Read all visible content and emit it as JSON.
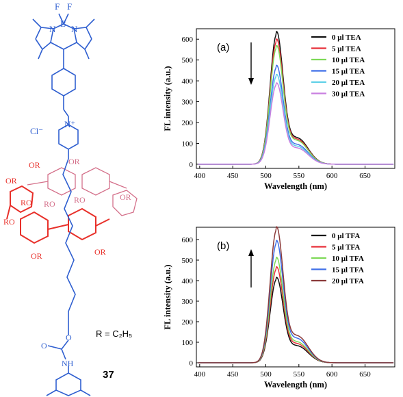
{
  "molecule": {
    "counterion": "Cl⁻",
    "ring_labels_blue": [
      "F",
      "F",
      "B",
      "N",
      "N",
      "N⁺"
    ],
    "substituent": "OR",
    "r_definition": "R = C₂H₅",
    "compound_number": "37",
    "chain_labels": [
      "O",
      "O",
      "NH",
      "RO",
      "RO",
      "RO",
      "RO"
    ],
    "colors": {
      "blue": "#2f5fd0",
      "red": "#e8302a",
      "pink": "#d4708a"
    }
  },
  "chart_data": [
    {
      "type": "line",
      "panel_label": "(a)",
      "xlabel": "Wavelength (nm)",
      "ylabel": "FL intensity (a.u.)",
      "xlim": [
        395,
        695
      ],
      "ylim": [
        -20,
        650
      ],
      "xticks": [
        400,
        450,
        500,
        550,
        600,
        650
      ],
      "yticks": [
        0,
        100,
        200,
        300,
        400,
        500,
        600
      ],
      "arrow": "down",
      "legend_position": "top-right",
      "peak_x": 516,
      "series": [
        {
          "name": "0 μl TEA",
          "color": "#111111",
          "peak": 620
        },
        {
          "name": "5 μl TEA",
          "color": "#e8303a",
          "peak": 585
        },
        {
          "name": "10 μl TEA",
          "color": "#7ed957",
          "peak": 555
        },
        {
          "name": "15 μl TEA",
          "color": "#3f6fe8",
          "peak": 462
        },
        {
          "name": "20 μl TEA",
          "color": "#5fd0e8",
          "peak": 420
        },
        {
          "name": "30 μl TEA",
          "color": "#c97fe0",
          "peak": 380
        }
      ]
    },
    {
      "type": "line",
      "panel_label": "(b)",
      "xlabel": "Wavelength (nm)",
      "ylabel": "FL intensity (a.u.)",
      "xlim": [
        395,
        695
      ],
      "ylim": [
        -20,
        660
      ],
      "xticks": [
        400,
        450,
        500,
        550,
        600,
        650
      ],
      "yticks": [
        0,
        100,
        200,
        300,
        400,
        500,
        600
      ],
      "arrow": "up",
      "legend_position": "top-right",
      "peak_x": 516,
      "series": [
        {
          "name": "0 μl TFA",
          "color": "#111111",
          "peak": 405
        },
        {
          "name": "5 μl TFA",
          "color": "#e8303a",
          "peak": 455
        },
        {
          "name": "10 μl TFA",
          "color": "#7ed957",
          "peak": 500
        },
        {
          "name": "15 μl TFA",
          "color": "#3f6fe8",
          "peak": 580
        },
        {
          "name": "20 μl TFA",
          "color": "#8b3a3a",
          "peak": 645
        }
      ]
    }
  ]
}
